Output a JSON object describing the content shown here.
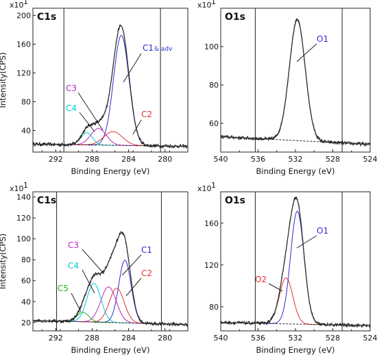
{
  "chart_data": [
    {
      "type": "line",
      "panel_title": "C1s",
      "xlabel": "Binding Energy (eV)",
      "ylabel": "Intensity(CPS)",
      "y_multiplier": "x10",
      "y_multiplier_exp": "1",
      "xlim": [
        294.5,
        277.5
      ],
      "ylim": [
        10,
        210
      ],
      "x_ticks": [
        292,
        288,
        284,
        280
      ],
      "x_tick_labels": [
        "292",
        "288",
        "284",
        "280"
      ],
      "y_ticks": [
        40,
        80,
        120,
        160,
        200
      ],
      "y_tick_labels": [
        "40",
        "80",
        "120",
        "160",
        "200"
      ],
      "range_markers": [
        291.1,
        280.5
      ],
      "background": {
        "start": 21,
        "end": 18
      },
      "components": [
        {
          "name": "C1 & adv",
          "label": "C1",
          "suffix": "& adv",
          "center": 284.8,
          "height": 153,
          "fwhm": 2.0,
          "color": "#2b2bd0"
        },
        {
          "name": "C2",
          "label": "C2",
          "center": 285.7,
          "height": 19,
          "fwhm": 2.4,
          "color": "#e03030"
        },
        {
          "name": "C3",
          "label": "C3",
          "center": 287.3,
          "height": 23,
          "fwhm": 2.0,
          "color": "#c020c0"
        },
        {
          "name": "C4",
          "label": "C4",
          "center": 288.6,
          "height": 17,
          "fwhm": 1.5,
          "color": "#00c8d8"
        }
      ]
    },
    {
      "type": "line",
      "panel_title": "O1s",
      "xlabel": "Binding Energy (eV)",
      "ylabel": "",
      "y_multiplier": "x10",
      "y_multiplier_exp": "1",
      "xlim": [
        540,
        524
      ],
      "ylim": [
        45,
        120
      ],
      "x_ticks": [
        540,
        536,
        532,
        528,
        524
      ],
      "x_tick_labels": [
        "540",
        "536",
        "532",
        "528",
        "524"
      ],
      "y_ticks": [
        60,
        80,
        100
      ],
      "y_tick_labels": [
        "60",
        "80",
        "100"
      ],
      "range_markers": [
        536.3,
        527.0
      ],
      "background": {
        "start": 53,
        "end": 49
      },
      "components": [
        {
          "name": "O1",
          "label": "O1",
          "center": 531.8,
          "height": 63,
          "fwhm": 2.0,
          "color": "#2b2bd0"
        }
      ]
    },
    {
      "type": "line",
      "panel_title": "C1s",
      "xlabel": "Binding Energy (eV)",
      "ylabel": "Intensity(CPS)",
      "y_multiplier": "x10",
      "y_multiplier_exp": "1",
      "xlim": [
        294.5,
        277.5
      ],
      "ylim": [
        12,
        145
      ],
      "x_ticks": [
        292,
        288,
        284,
        280
      ],
      "x_tick_labels": [
        "292",
        "288",
        "284",
        "280"
      ],
      "y_ticks": [
        20,
        40,
        60,
        80,
        100,
        120,
        140
      ],
      "y_tick_labels": [
        "20",
        "40",
        "60",
        "80",
        "100",
        "120",
        "140"
      ],
      "range_markers": [
        291.9,
        280.4
      ],
      "background": {
        "start": 22,
        "end": 18
      },
      "components": [
        {
          "name": "C1",
          "label": "C1",
          "center": 284.4,
          "height": 60,
          "fwhm": 1.6,
          "color": "#2b2bd0"
        },
        {
          "name": "C2",
          "label": "C2",
          "center": 285.3,
          "height": 33,
          "fwhm": 1.9,
          "color": "#e03030"
        },
        {
          "name": "C3",
          "label": "C3",
          "center": 286.2,
          "height": 34,
          "fwhm": 2.0,
          "color": "#c020c0"
        },
        {
          "name": "C4",
          "label": "C4",
          "center": 287.8,
          "height": 37,
          "fwhm": 1.8,
          "color": "#00c8d8"
        },
        {
          "name": "C5",
          "label": "C5",
          "center": 289.0,
          "height": 9,
          "fwhm": 1.5,
          "color": "#20b020"
        }
      ]
    },
    {
      "type": "line",
      "panel_title": "O1s",
      "xlabel": "Binding Energy (eV)",
      "ylabel": "",
      "y_multiplier": "x10",
      "y_multiplier_exp": "1",
      "xlim": [
        540,
        524
      ],
      "ylim": [
        57,
        190
      ],
      "x_ticks": [
        540,
        536,
        532,
        528,
        524
      ],
      "x_tick_labels": [
        "540",
        "536",
        "532",
        "528",
        "524"
      ],
      "y_ticks": [
        80,
        120,
        160
      ],
      "y_tick_labels": [
        "80",
        "120",
        "160"
      ],
      "range_markers": [
        536.3,
        527.0
      ],
      "background": {
        "start": 65,
        "end": 62
      },
      "components": [
        {
          "name": "O1",
          "label": "O1",
          "center": 531.8,
          "height": 108,
          "fwhm": 1.7,
          "color": "#2b2bd0"
        },
        {
          "name": "O2",
          "label": "O2",
          "center": 533.0,
          "height": 44,
          "fwhm": 1.7,
          "color": "#e03030"
        }
      ]
    }
  ]
}
